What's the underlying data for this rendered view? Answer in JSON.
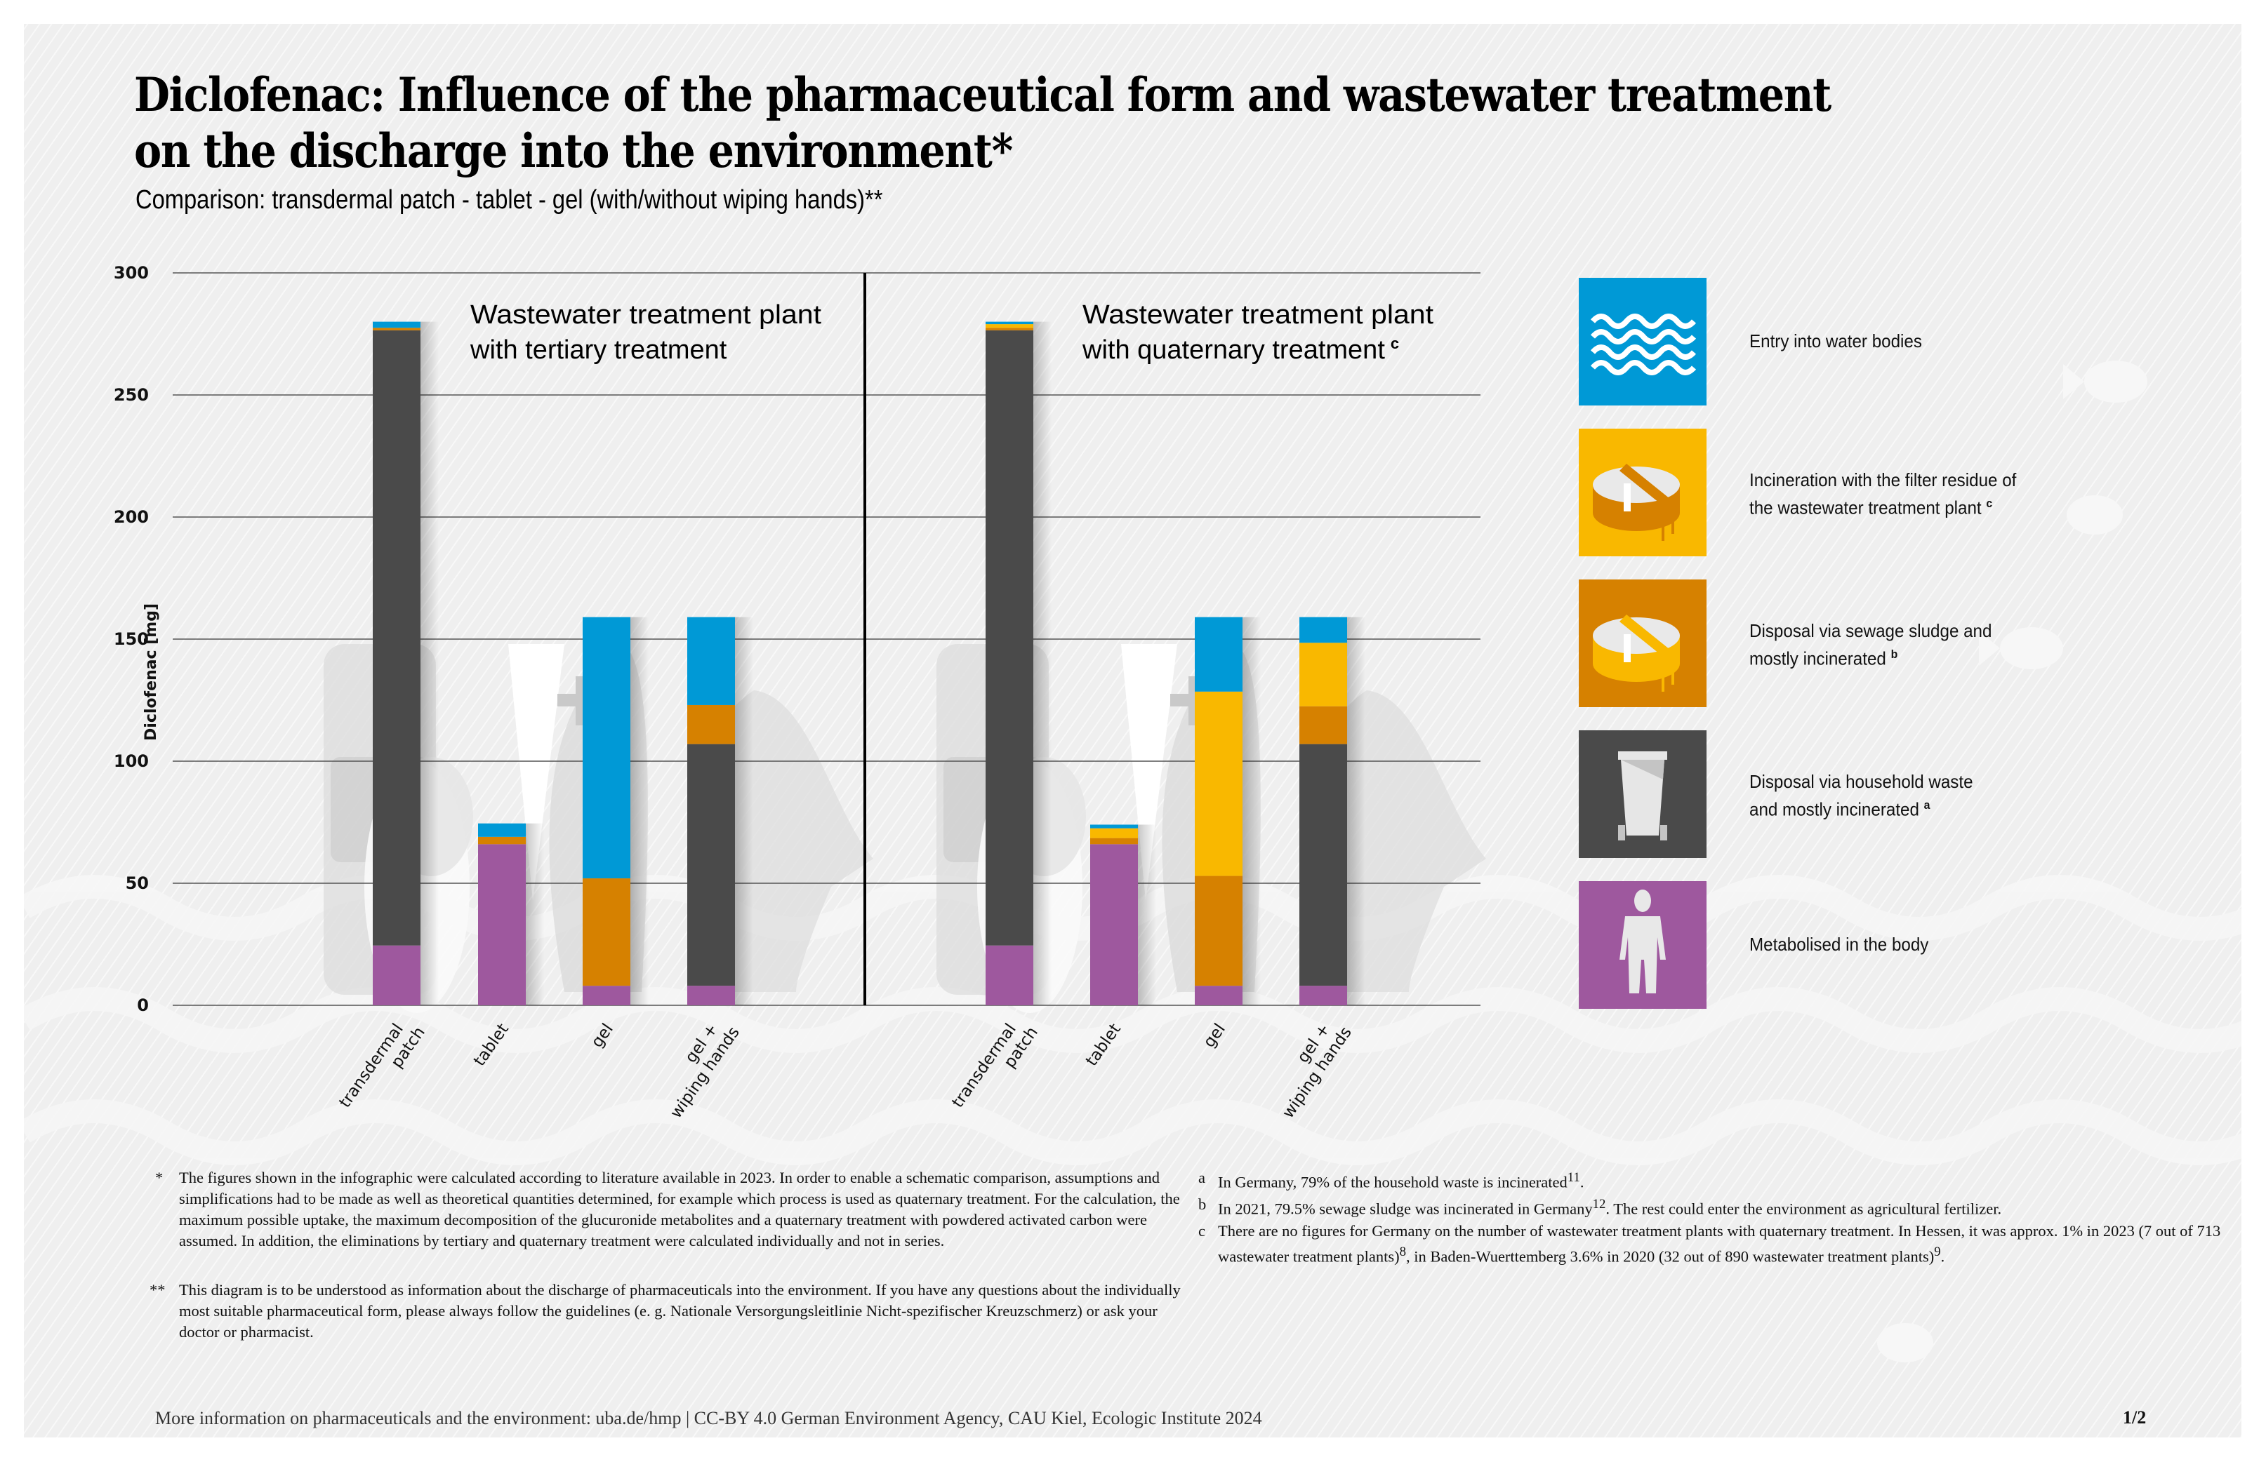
{
  "header": {
    "title_line1": "Diclofenac: Influence of the pharmaceutical form and wastewater treatment",
    "title_line2": "on the discharge into the environment*",
    "subtitle": "Comparison: transdermal patch - tablet - gel (with/without wiping hands)**"
  },
  "chart_data": {
    "type": "bar",
    "stacked": true,
    "title": "Diclofenac: Influence of the pharmaceutical form and wastewater treatment on the discharge into the environment*",
    "ylabel": "Diclofenac [mg]",
    "ylim": [
      0,
      300
    ],
    "yticks": [
      "0",
      "50",
      "100",
      "150",
      "200",
      "250",
      "300"
    ],
    "grid": true,
    "legend_position": "right",
    "panels": [
      {
        "label_line1": "Wastewater treatment plant",
        "label_line2": "with tertiary treatment",
        "label_sup": "",
        "categories": [
          {
            "line1": "transdermal",
            "line2": "patch"
          },
          {
            "line1": "tablet",
            "line2": ""
          },
          {
            "line1": "gel",
            "line2": ""
          },
          {
            "line1": "gel +",
            "line2": "wiping hands"
          }
        ],
        "series": [
          {
            "key": "metabolised",
            "values": [
              24.5,
              66,
              8,
              8
            ]
          },
          {
            "key": "household_waste",
            "values": [
              252,
              0,
              0,
              99
            ]
          },
          {
            "key": "sewage_sludge",
            "values": [
              1,
              3,
              44,
              16
            ]
          },
          {
            "key": "filter_residue",
            "values": [
              0,
              0,
              0,
              0
            ]
          },
          {
            "key": "water_bodies",
            "values": [
              2.5,
              5.5,
              107,
              36
            ]
          }
        ]
      },
      {
        "label_line1": "Wastewater treatment plant",
        "label_line2": "with quaternary treatment",
        "label_sup": "c",
        "categories": [
          {
            "line1": "transdermal",
            "line2": "patch"
          },
          {
            "line1": "tablet",
            "line2": ""
          },
          {
            "line1": "gel",
            "line2": ""
          },
          {
            "line1": "gel +",
            "line2": "wiping hands"
          }
        ],
        "series": [
          {
            "key": "metabolised",
            "values": [
              24.5,
              66,
              8,
              8
            ]
          },
          {
            "key": "household_waste",
            "values": [
              252,
              0,
              0,
              99
            ]
          },
          {
            "key": "sewage_sludge",
            "values": [
              1,
              2.5,
              45,
              15.5
            ]
          },
          {
            "key": "filter_residue",
            "values": [
              1.5,
              4,
              75.5,
              26
            ]
          },
          {
            "key": "water_bodies",
            "values": [
              1,
              1.5,
              30.5,
              10.5
            ]
          }
        ]
      }
    ],
    "legend": [
      {
        "key": "water_bodies",
        "label_line1": "Entry into water bodies",
        "label_line2": "",
        "sup": "",
        "color": "#0099d6",
        "icon": "waves-icon"
      },
      {
        "key": "filter_residue",
        "label_line1": "Incineration with the filter residue of",
        "label_line2": "the wastewater treatment plant",
        "sup": "c",
        "color": "#f9b800",
        "icon": "treatment-basin-icon"
      },
      {
        "key": "sewage_sludge",
        "label_line1": "Disposal via sewage sludge and",
        "label_line2": "mostly incinerated",
        "sup": "b",
        "color": "#d68100",
        "icon": "sludge-basin-icon"
      },
      {
        "key": "household_waste",
        "label_line1": "Disposal via household waste",
        "label_line2": "and mostly incinerated",
        "sup": "a",
        "color": "#4a4a4a",
        "icon": "waste-bin-icon"
      },
      {
        "key": "metabolised",
        "label_line1": "Metabolised in the body",
        "label_line2": "",
        "sup": "",
        "color": "#9e589e",
        "icon": "person-icon"
      }
    ]
  },
  "footnotes": {
    "star": {
      "mark": "*",
      "text": "The figures shown in the infographic were calculated according to literature available in 2023. In order to enable a schematic comparison, assumptions and simplifications had to be made as well as theoretical quantities determined, for example which process is used as quaternary treatment. For the calculation, the maximum possible uptake, the maximum decomposition of the glucuronide metabolites and a quaternary treatment with powdered activated carbon were assumed. In addition, the eliminations by tertiary and quaternary treatment were calculated individually and not in series."
    },
    "double_star": {
      "mark": "**",
      "text": "This diagram is to be understood as information about the discharge of pharmaceuticals into the environment. If you have any questions about the individually most suitable pharmaceutical form, please always follow  the guidelines (e. g. Nationale Versorgungsleitlinie Nicht-spezifischer Kreuzschmerz) or ask your doctor or pharmacist."
    },
    "a": {
      "mark": "a",
      "text": "In Germany, 79% of the household waste is incinerated",
      "ref": "11",
      "tail": "."
    },
    "b": {
      "mark": "b",
      "text": "In 2021, 79.5%  sewage sludge was incinerated in Germany",
      "ref": "12",
      "tail": ". The rest could enter the environment as agricultural fertilizer."
    },
    "c": {
      "mark": "c",
      "text1": "There are no figures for Germany on the number of wastewater treatment plants with quaternary treatment. In Hessen, it was approx. 1% in 2023 (7 out of 713 wastewater treatment plants)",
      "ref1": "8",
      "text2": ", in Baden-Wuerttemberg 3.6% in 2020 (32 out of 890 wastewater treatment plants)",
      "ref2": "9",
      "tail": "."
    }
  },
  "footer": {
    "text": "More information on pharmaceuticals and the environment: uba.de/hmp | CC-BY 4.0 German Environment Agency, CAU Kiel, Ecologic Institute 2024",
    "page": "1/2"
  }
}
